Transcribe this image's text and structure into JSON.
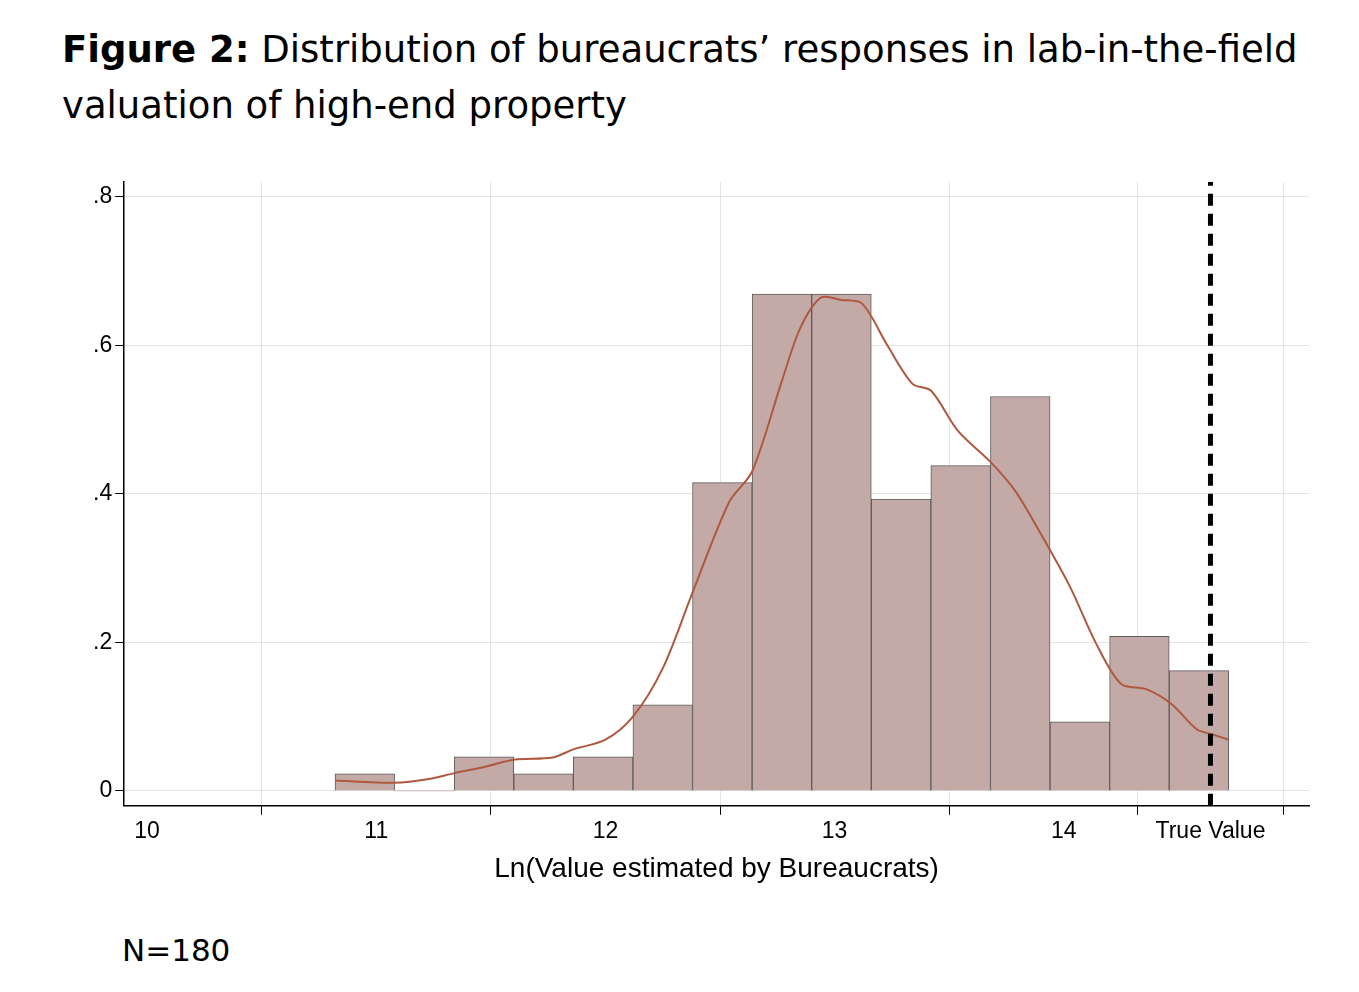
{
  "chart_data": {
    "type": "histogram",
    "title": "Figure 2: Distribution of bureaucrats’ responses in lab-in-the-field valuation of high-end property",
    "x_label": "Ln(Value estimated by Bureaucrats)",
    "note": "N=180",
    "bins": [
      10.82,
      11.08,
      11.34,
      11.6,
      11.86,
      12.12,
      12.38,
      12.64,
      12.9,
      13.16,
      13.42,
      13.68,
      13.94,
      14.2,
      14.46,
      14.72
    ],
    "values": [
      0.023,
      0,
      0.046,
      0.023,
      0.046,
      0.116,
      0.415,
      0.669,
      0.669,
      0.393,
      0.438,
      0.531,
      0.093,
      0.208,
      0.162
    ],
    "color": "#c4aaa7",
    "density_line": {
      "color": "#b0583e",
      "x": [
        10.82,
        11.08,
        11.23,
        11.34,
        11.48,
        11.6,
        11.77,
        11.86,
        12.0,
        12.12,
        12.25,
        12.38,
        12.54,
        12.64,
        12.77,
        12.85,
        12.94,
        13.03,
        13.12,
        13.23,
        13.34,
        13.42,
        13.54,
        13.68,
        13.79,
        13.92,
        14.03,
        14.14,
        14.25,
        14.36,
        14.47,
        14.58,
        14.65,
        14.72
      ],
      "y": [
        0.014,
        0.011,
        0.016,
        0.024,
        0.033,
        0.042,
        0.045,
        0.056,
        0.069,
        0.1,
        0.165,
        0.267,
        0.389,
        0.43,
        0.552,
        0.623,
        0.664,
        0.661,
        0.656,
        0.6,
        0.548,
        0.539,
        0.484,
        0.443,
        0.403,
        0.335,
        0.273,
        0.199,
        0.144,
        0.137,
        0.117,
        0.083,
        0.076,
        0.069
      ]
    },
    "reference_line": {
      "x": 14.64,
      "color": "#000000",
      "line_style": "dashed"
    },
    "xlim": [
      9.9,
      15.07
    ],
    "xticks": [
      10,
      11,
      12,
      13,
      14,
      {
        "value": 14.64,
        "label": "True Value"
      }
    ],
    "ylim": [
      -0.02,
      0.82
    ],
    "yticks": [
      0,
      {
        "value": 0.2,
        "label": ".2"
      },
      {
        "value": 0.4,
        "label": ".4"
      },
      {
        "value": 0.6,
        "label": ".6"
      },
      {
        "value": 0.8,
        "label": ".8"
      }
    ],
    "grid": true
  }
}
